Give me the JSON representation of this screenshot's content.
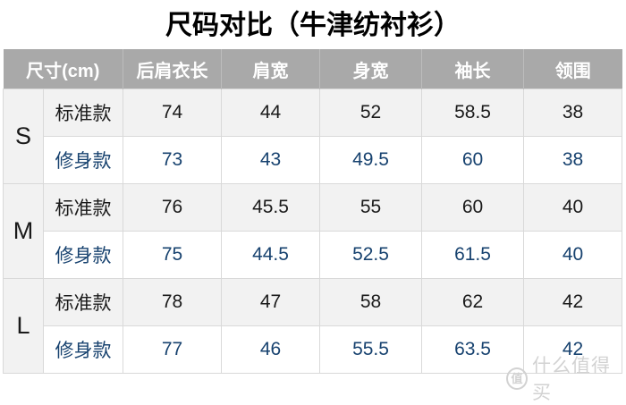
{
  "title": "尺码对比（牛津纺衬衫）",
  "chart_data": {
    "type": "table",
    "title": "尺码对比（牛津纺衬衫）",
    "columns": [
      "尺寸(cm)",
      "后肩衣长",
      "肩宽",
      "身宽",
      "袖长",
      "领围"
    ],
    "row_groups": [
      {
        "size": "S",
        "rows": [
          {
            "fit": "标准款",
            "values": [
              74,
              44,
              52,
              58.5,
              38
            ]
          },
          {
            "fit": "修身款",
            "values": [
              73,
              43,
              49.5,
              60,
              38
            ]
          }
        ]
      },
      {
        "size": "M",
        "rows": [
          {
            "fit": "标准款",
            "values": [
              76,
              45.5,
              55,
              60,
              40
            ]
          },
          {
            "fit": "修身款",
            "values": [
              75,
              44.5,
              52.5,
              61.5,
              40
            ]
          }
        ]
      },
      {
        "size": "L",
        "rows": [
          {
            "fit": "标准款",
            "values": [
              78,
              47,
              58,
              62,
              42
            ]
          },
          {
            "fit": "修身款",
            "values": [
              77,
              46,
              55.5,
              63.5,
              42
            ]
          }
        ]
      }
    ]
  },
  "watermark": {
    "badge": "值",
    "label": "什么值得买"
  },
  "colors": {
    "header_bg": "#a9a9a9",
    "header_text": "#ffffff",
    "standard_row_bg": "#f2f2f2",
    "slim_row_bg": "#ffffff",
    "standard_text": "#1a1a1a",
    "slim_text": "#17426f",
    "border": "#d9d9d9",
    "watermark": "#d2d2d2"
  }
}
